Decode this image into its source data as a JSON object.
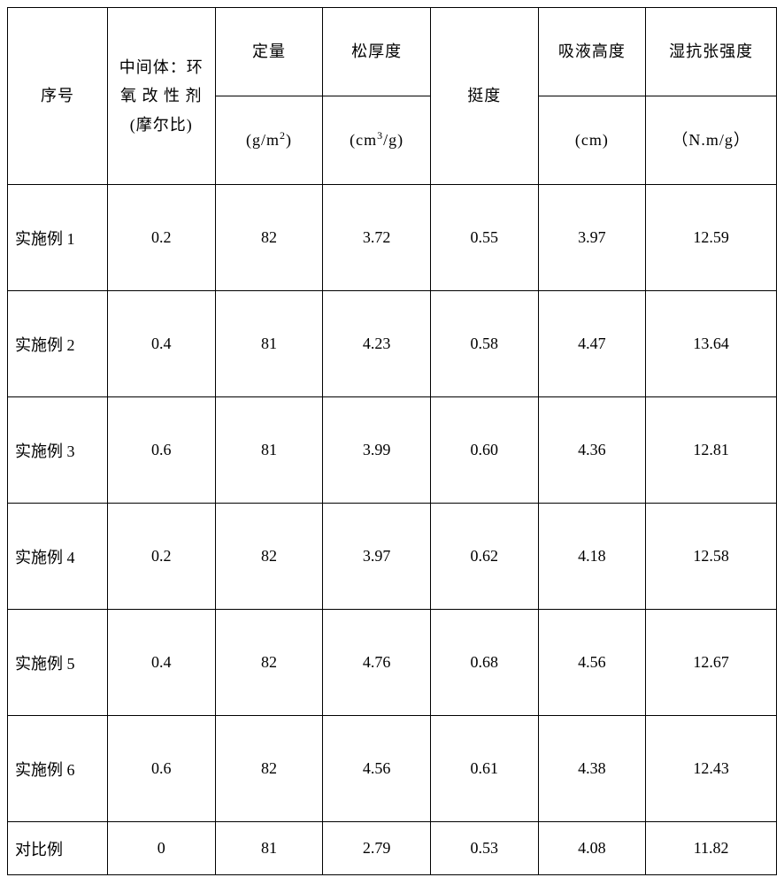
{
  "table": {
    "headers": {
      "col1": "序号",
      "col2": "中间体：环氧 改 性 剂(摩尔比)",
      "col3_top": "定量",
      "col3_unit": "(g/m²)",
      "col4_top": "松厚度",
      "col4_unit": "(cm³/g)",
      "col5": "挺度",
      "col6_top": "吸液高度",
      "col6_unit": "(cm)",
      "col7_top": "湿抗张强度",
      "col7_unit": "（N.m/g）"
    },
    "rows": [
      {
        "label": "实施例 1",
        "ratio": "0.2",
        "quant": "82",
        "bulk": "3.72",
        "stiff": "0.55",
        "absorb": "3.97",
        "wet": "12.59"
      },
      {
        "label": "实施例 2",
        "ratio": "0.4",
        "quant": "81",
        "bulk": "4.23",
        "stiff": "0.58",
        "absorb": "4.47",
        "wet": "13.64"
      },
      {
        "label": "实施例 3",
        "ratio": "0.6",
        "quant": "81",
        "bulk": "3.99",
        "stiff": "0.60",
        "absorb": "4.36",
        "wet": "12.81"
      },
      {
        "label": "实施例 4",
        "ratio": "0.2",
        "quant": "82",
        "bulk": "3.97",
        "stiff": "0.62",
        "absorb": "4.18",
        "wet": "12.58"
      },
      {
        "label": "实施例 5",
        "ratio": "0.4",
        "quant": "82",
        "bulk": "4.76",
        "stiff": "0.68",
        "absorb": "4.56",
        "wet": "12.67"
      },
      {
        "label": "实施例 6",
        "ratio": "0.6",
        "quant": "82",
        "bulk": "4.56",
        "stiff": "0.61",
        "absorb": "4.38",
        "wet": "12.43"
      },
      {
        "label": "对比例",
        "ratio": "0",
        "quant": "81",
        "bulk": "2.79",
        "stiff": "0.53",
        "absorb": "4.08",
        "wet": "11.82"
      }
    ],
    "styling": {
      "border_color": "#000000",
      "background_color": "#ffffff",
      "font_size": 18,
      "font_family": "SimSun",
      "border_width": 1.5,
      "column_widths_percent": [
        13,
        14,
        14,
        14,
        14,
        14,
        17
      ],
      "header_row_height": 100,
      "data_row_height": 120,
      "last_row_height": 60
    }
  }
}
